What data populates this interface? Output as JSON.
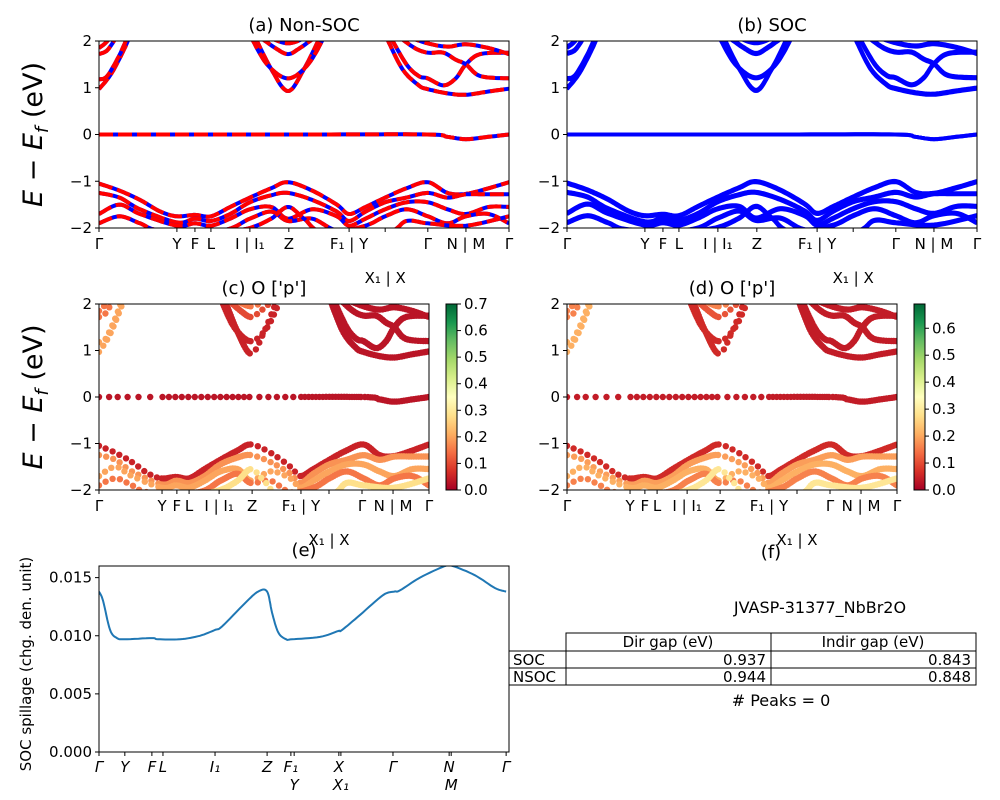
{
  "chart_data": [
    {
      "id": "a",
      "type": "line",
      "title": "(a) Non-SOC",
      "ylabel": {
        "main": "E − E",
        "sub": "f",
        "unit": " (eV)"
      },
      "ylim": [
        -2,
        2
      ],
      "yticks": [
        "2",
        "1",
        "0",
        "−1",
        "−2"
      ],
      "xticks": [
        {
          "k": 0,
          "label": "Γ"
        },
        {
          "k": 0.19,
          "label": "Y"
        },
        {
          "k": 0.234,
          "label": "F"
        },
        {
          "k": 0.273,
          "label": "L"
        },
        {
          "k": 0.368,
          "label": "I | I₁"
        },
        {
          "k": 0.463,
          "label": "Z"
        },
        {
          "k": 0.61,
          "label": "F₁ | Y"
        },
        {
          "k": 0.698,
          "label": "X₁ | X"
        },
        {
          "k": 0.802,
          "label": "Γ"
        },
        {
          "k": 0.895,
          "label": "N | M"
        },
        {
          "k": 1,
          "label": "Γ"
        }
      ],
      "colors": {
        "primary": "#ff0000",
        "secondary": "#0000ff"
      }
    },
    {
      "id": "b",
      "type": "line",
      "title": "(b) SOC",
      "ylim": [
        -2,
        2
      ],
      "yticks": [
        "2",
        "1",
        "0",
        "−1",
        "−2"
      ],
      "xticks": [
        {
          "k": 0,
          "label": "Γ"
        },
        {
          "k": 0.19,
          "label": "Y"
        },
        {
          "k": 0.234,
          "label": "F"
        },
        {
          "k": 0.273,
          "label": "L"
        },
        {
          "k": 0.368,
          "label": "I | I₁"
        },
        {
          "k": 0.463,
          "label": "Z"
        },
        {
          "k": 0.61,
          "label": "F₁ | Y"
        },
        {
          "k": 0.698,
          "label": "X₁ | X"
        },
        {
          "k": 0.802,
          "label": "Γ"
        },
        {
          "k": 0.895,
          "label": "N | M"
        },
        {
          "k": 1,
          "label": "Γ"
        }
      ],
      "colors": {
        "primary": "#0000ff"
      }
    },
    {
      "id": "c",
      "type": "scatter",
      "title": "(c)  O ['p']",
      "ylabel": {
        "main": "E − E",
        "sub": "f",
        "unit": " (eV)"
      },
      "ylim": [
        -2,
        2
      ],
      "yticks": [
        "2",
        "1",
        "0",
        "−1",
        "−2"
      ],
      "xticks": [
        {
          "k": 0,
          "label": "Γ"
        },
        {
          "k": 0.191,
          "label": "Y"
        },
        {
          "k": 0.236,
          "label": "F"
        },
        {
          "k": 0.273,
          "label": "L"
        },
        {
          "k": 0.364,
          "label": "I | I₁"
        },
        {
          "k": 0.464,
          "label": "Z"
        },
        {
          "k": 0.612,
          "label": "F₁ | Y"
        },
        {
          "k": 0.697,
          "label": "X₁ | X"
        },
        {
          "k": 0.797,
          "label": "Γ"
        },
        {
          "k": 0.891,
          "label": "N | M"
        },
        {
          "k": 1,
          "label": "Γ"
        }
      ],
      "colorbar": {
        "range": [
          0,
          0.7
        ],
        "ticks": [
          "0.0",
          "0.1",
          "0.2",
          "0.3",
          "0.4",
          "0.5",
          "0.6",
          "0.7"
        ]
      }
    },
    {
      "id": "d",
      "type": "scatter",
      "title": "(d) O ['p']",
      "ylim": [
        -2,
        2
      ],
      "yticks": [
        "2",
        "1",
        "0",
        "−1",
        "−2"
      ],
      "xticks": [
        {
          "k": 0,
          "label": "Γ"
        },
        {
          "k": 0.191,
          "label": "Y"
        },
        {
          "k": 0.236,
          "label": "F"
        },
        {
          "k": 0.273,
          "label": "L"
        },
        {
          "k": 0.364,
          "label": "I | I₁"
        },
        {
          "k": 0.464,
          "label": "Z"
        },
        {
          "k": 0.612,
          "label": "F₁ | Y"
        },
        {
          "k": 0.697,
          "label": "X₁ | X"
        },
        {
          "k": 0.797,
          "label": "Γ"
        },
        {
          "k": 0.891,
          "label": "N | M"
        },
        {
          "k": 1,
          "label": "Γ"
        }
      ],
      "colorbar": {
        "range": [
          0,
          0.69
        ],
        "ticks": [
          "0.0",
          "0.1",
          "0.2",
          "0.3",
          "0.4",
          "0.5",
          "0.6"
        ]
      }
    },
    {
      "id": "e",
      "type": "line",
      "title": "(e)",
      "ylabel": "SOC spillage (chg. den. unit)",
      "ylim": [
        0,
        0.016
      ],
      "yticks": [
        {
          "v": 0,
          "label": "0.000"
        },
        {
          "v": 0.005,
          "label": "0.005"
        },
        {
          "v": 0.01,
          "label": "0.010"
        },
        {
          "v": 0.015,
          "label": "0.015"
        }
      ],
      "xticks": [
        {
          "k": 0,
          "label": "Γ"
        },
        {
          "k": 0.063,
          "label": "Y"
        },
        {
          "k": 0.129,
          "label": "F"
        },
        {
          "k": 0.156,
          "label": "L"
        },
        {
          "k": 0.283,
          "label": "I₁"
        },
        {
          "k": 0.41,
          "label": "Z"
        },
        {
          "k": 0.468,
          "label": "F₁"
        },
        {
          "k": 0.476,
          "label": "Y"
        },
        {
          "k": 0.585,
          "label": "X"
        },
        {
          "k": 0.59,
          "label": "X₁"
        },
        {
          "k": 0.717,
          "label": "Γ"
        },
        {
          "k": 0.854,
          "label": "N"
        },
        {
          "k": 0.859,
          "label": "M"
        },
        {
          "k": 0.993,
          "label": "Γ"
        }
      ],
      "color": "#1f77b4",
      "series": [
        {
          "x": [
            0,
            0.01,
            0.027,
            0.044,
            0.063,
            0.129,
            0.144,
            0.198,
            0.246,
            0.283,
            0.3,
            0.356,
            0.388,
            0.41,
            0.422,
            0.437,
            0.456,
            0.471,
            0.539,
            0.583,
            0.593,
            0.637,
            0.693,
            0.72,
            0.734,
            0.783,
            0.844,
            0.863,
            0.917,
            0.966,
            0.993
          ],
          "y": [
            0.0138,
            0.013,
            0.0105,
            0.0098,
            0.0097,
            0.0098,
            0.0097,
            0.0097,
            0.01,
            0.0105,
            0.0108,
            0.0128,
            0.0138,
            0.0138,
            0.012,
            0.0103,
            0.0097,
            0.0097,
            0.0099,
            0.0104,
            0.0105,
            0.0118,
            0.0135,
            0.0138,
            0.0139,
            0.015,
            0.016,
            0.016,
            0.0152,
            0.0141,
            0.0138
          ]
        }
      ]
    },
    {
      "id": "f",
      "type": "table",
      "title": "(f)",
      "subtitle": "JVASP-31377_NbBr2O",
      "columns": [
        "Dir gap (eV)",
        "Indir gap (eV)"
      ],
      "rows": [
        {
          "label": "SOC",
          "values": [
            "0.937",
            "0.843"
          ]
        },
        {
          "label": "NSOC",
          "values": [
            "0.944",
            "0.848"
          ]
        }
      ],
      "footer": "# Peaks = 0"
    }
  ],
  "bands": [
    {
      "w": 0.2,
      "pts": [
        [
          0,
          0.97
        ],
        [
          0.03,
          1.3
        ],
        [
          0.06,
          1.8
        ],
        [
          0.075,
          2.1
        ]
      ]
    },
    {
      "w": 0.2,
      "pts": [
        [
          0,
          1.18
        ],
        [
          0.02,
          1.25
        ],
        [
          0.05,
          1.7
        ],
        [
          0.07,
          2.1
        ]
      ]
    },
    {
      "w": 0.15,
      "pts": [
        [
          0,
          1.72
        ],
        [
          0.02,
          1.8
        ],
        [
          0.04,
          2.05
        ]
      ]
    },
    {
      "w": 0.15,
      "pts": [
        [
          0,
          1.85
        ],
        [
          0.015,
          1.95
        ],
        [
          0.03,
          2.1
        ]
      ]
    },
    {
      "w": 0.05,
      "pts": [
        [
          0.38,
          2.1
        ],
        [
          0.42,
          1.4
        ],
        [
          0.461,
          0.93
        ],
        [
          0.5,
          1.4
        ],
        [
          0.54,
          2.1
        ]
      ]
    },
    {
      "w": 0.05,
      "pts": [
        [
          0.37,
          2.1
        ],
        [
          0.41,
          1.5
        ],
        [
          0.461,
          1.2
        ],
        [
          0.51,
          1.5
        ],
        [
          0.55,
          2.1
        ]
      ]
    },
    {
      "w": 0.1,
      "pts": [
        [
          0.39,
          2.1
        ],
        [
          0.43,
          1.85
        ],
        [
          0.461,
          1.72
        ],
        [
          0.49,
          1.85
        ],
        [
          0.53,
          2.1
        ]
      ]
    },
    {
      "w": 0.15,
      "pts": [
        [
          0.41,
          2.1
        ],
        [
          0.461,
          1.95
        ],
        [
          0.51,
          2.1
        ]
      ]
    },
    {
      "w": 0.03,
      "pts": [
        [
          0.7,
          2.1
        ],
        [
          0.74,
          1.4
        ],
        [
          0.78,
          1.05
        ],
        [
          0.802,
          0.97
        ],
        [
          0.85,
          0.88
        ],
        [
          0.895,
          0.85
        ],
        [
          0.95,
          0.92
        ],
        [
          1,
          0.98
        ]
      ]
    },
    {
      "w": 0.03,
      "pts": [
        [
          0.71,
          2.1
        ],
        [
          0.75,
          1.5
        ],
        [
          0.78,
          1.25
        ],
        [
          0.802,
          1.2
        ],
        [
          0.84,
          1.05
        ],
        [
          0.87,
          1.2
        ],
        [
          0.895,
          1.5
        ],
        [
          0.93,
          1.72
        ],
        [
          1,
          1.75
        ]
      ]
    },
    {
      "w": 0.03,
      "pts": [
        [
          0.73,
          2.1
        ],
        [
          0.77,
          1.85
        ],
        [
          0.802,
          1.75
        ],
        [
          0.84,
          1.75
        ],
        [
          0.87,
          1.6
        ],
        [
          0.895,
          1.5
        ],
        [
          0.93,
          1.25
        ],
        [
          1,
          1.2
        ]
      ]
    },
    {
      "w": 0.03,
      "pts": [
        [
          0.75,
          2.1
        ],
        [
          0.802,
          1.95
        ],
        [
          0.85,
          1.88
        ],
        [
          0.895,
          1.93
        ],
        [
          0.95,
          1.85
        ],
        [
          1,
          1.72
        ]
      ]
    },
    {
      "w": 0.03,
      "pts": [
        [
          0,
          0
        ],
        [
          0.5,
          0
        ],
        [
          0.8,
          0
        ],
        [
          0.85,
          -0.05
        ],
        [
          0.895,
          -0.1
        ],
        [
          0.95,
          -0.05
        ],
        [
          1,
          0
        ]
      ]
    },
    {
      "w": 0.05,
      "pts": [
        [
          0,
          -1.05
        ],
        [
          0.05,
          -1.2
        ],
        [
          0.1,
          -1.4
        ],
        [
          0.15,
          -1.65
        ],
        [
          0.19,
          -1.75
        ],
        [
          0.234,
          -1.72
        ],
        [
          0.273,
          -1.75
        ],
        [
          0.32,
          -1.55
        ],
        [
          0.368,
          -1.35
        ],
        [
          0.42,
          -1.15
        ],
        [
          0.461,
          -1.02
        ],
        [
          0.52,
          -1.2
        ],
        [
          0.58,
          -1.5
        ],
        [
          0.61,
          -1.7
        ],
        [
          0.65,
          -1.55
        ],
        [
          0.698,
          -1.35
        ],
        [
          0.75,
          -1.15
        ],
        [
          0.802,
          -1.02
        ],
        [
          0.85,
          -1.25
        ],
        [
          0.895,
          -1.27
        ],
        [
          0.95,
          -1.15
        ],
        [
          1,
          -1.02
        ]
      ]
    },
    {
      "w": 0.18,
      "pts": [
        [
          0,
          -1.25
        ],
        [
          0.05,
          -1.35
        ],
        [
          0.1,
          -1.6
        ],
        [
          0.19,
          -1.88
        ],
        [
          0.234,
          -1.8
        ],
        [
          0.273,
          -1.85
        ],
        [
          0.32,
          -1.7
        ],
        [
          0.368,
          -1.45
        ],
        [
          0.42,
          -1.3
        ],
        [
          0.461,
          -1.25
        ],
        [
          0.52,
          -1.4
        ],
        [
          0.58,
          -1.65
        ],
        [
          0.61,
          -1.85
        ],
        [
          0.65,
          -1.65
        ],
        [
          0.698,
          -1.45
        ],
        [
          0.75,
          -1.35
        ],
        [
          0.802,
          -1.25
        ],
        [
          0.85,
          -1.35
        ],
        [
          0.895,
          -1.28
        ],
        [
          0.95,
          -1.28
        ],
        [
          1,
          -1.28
        ]
      ]
    },
    {
      "w": 0.2,
      "pts": [
        [
          0,
          -1.7
        ],
        [
          0.05,
          -1.5
        ],
        [
          0.1,
          -1.7
        ],
        [
          0.19,
          -1.95
        ],
        [
          0.234,
          -1.9
        ],
        [
          0.273,
          -1.95
        ],
        [
          0.32,
          -1.8
        ],
        [
          0.368,
          -1.6
        ],
        [
          0.42,
          -1.55
        ],
        [
          0.461,
          -1.8
        ],
        [
          0.52,
          -1.6
        ],
        [
          0.58,
          -1.75
        ],
        [
          0.61,
          -1.95
        ],
        [
          0.65,
          -1.8
        ],
        [
          0.698,
          -1.6
        ],
        [
          0.75,
          -1.45
        ],
        [
          0.802,
          -1.45
        ],
        [
          0.85,
          -1.6
        ],
        [
          0.895,
          -1.7
        ],
        [
          0.95,
          -1.55
        ],
        [
          1,
          -1.55
        ]
      ]
    },
    {
      "w": 0.15,
      "pts": [
        [
          0,
          -1.9
        ],
        [
          0.05,
          -1.75
        ],
        [
          0.1,
          -1.9
        ],
        [
          0.15,
          -2.05
        ],
        [
          0.3,
          -2.05
        ],
        [
          0.368,
          -1.8
        ],
        [
          0.42,
          -1.65
        ],
        [
          0.461,
          -1.85
        ],
        [
          0.52,
          -1.8
        ],
        [
          0.58,
          -2.05
        ],
        [
          0.65,
          -1.95
        ],
        [
          0.698,
          -1.75
        ],
        [
          0.75,
          -1.6
        ],
        [
          0.802,
          -1.75
        ],
        [
          0.85,
          -1.9
        ],
        [
          0.895,
          -1.75
        ],
        [
          0.95,
          -1.7
        ],
        [
          1,
          -1.9
        ]
      ]
    },
    {
      "w": 0.28,
      "pts": [
        [
          0.3,
          -2.1
        ],
        [
          0.368,
          -2.0
        ],
        [
          0.42,
          -1.8
        ],
        [
          0.461,
          -1.55
        ],
        [
          0.5,
          -1.8
        ],
        [
          0.55,
          -2.1
        ],
        [
          0.7,
          -2.1
        ],
        [
          0.75,
          -1.85
        ],
        [
          0.802,
          -1.9
        ],
        [
          0.895,
          -1.95
        ],
        [
          1,
          -1.75
        ]
      ]
    }
  ],
  "colormap": [
    "#a50026",
    "#d73027",
    "#f46d43",
    "#fdae61",
    "#fee08b",
    "#ffffbf",
    "#d9ef8b",
    "#a6d96a",
    "#66bd63",
    "#1a9850",
    "#006837"
  ]
}
